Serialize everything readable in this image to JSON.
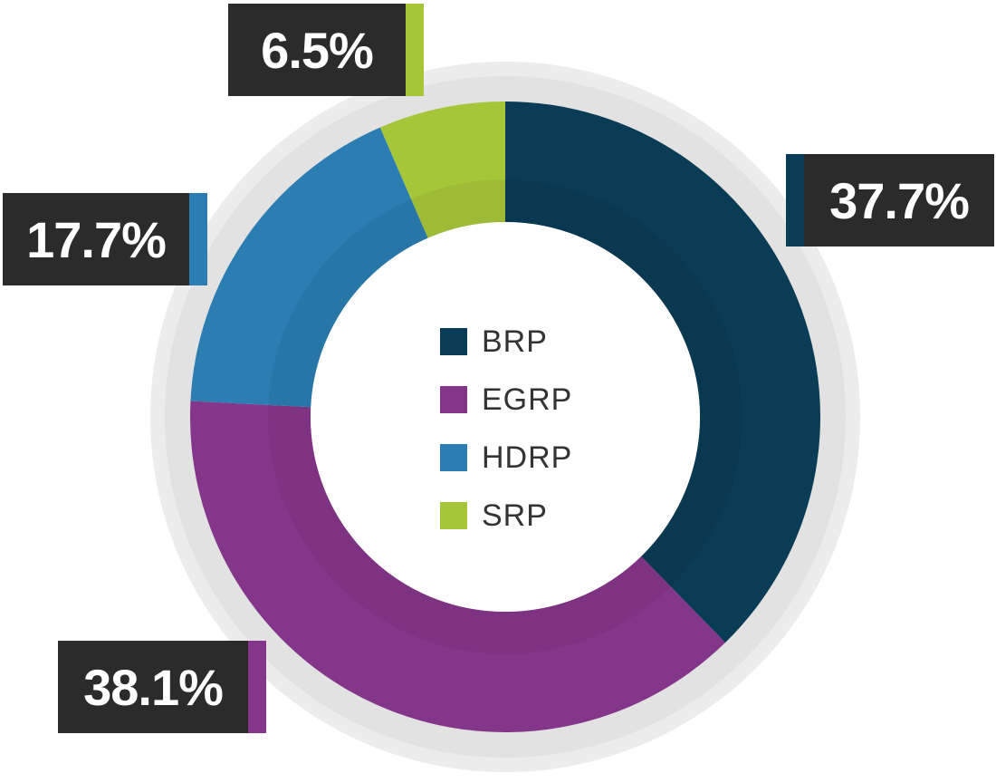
{
  "chart_data": {
    "type": "pie",
    "variant": "donut",
    "title": "",
    "legend_position": "center",
    "series": [
      {
        "name": "BRP",
        "value": 37.7,
        "label": "37.7%",
        "color": "#0b3c55"
      },
      {
        "name": "EGRP",
        "value": 38.1,
        "label": "38.1%",
        "color": "#84368a"
      },
      {
        "name": "HDRP",
        "value": 17.7,
        "label": "17.7%",
        "color": "#2b7db2"
      },
      {
        "name": "SRP",
        "value": 6.5,
        "label": "6.5%",
        "color": "#a6c63a"
      }
    ]
  }
}
